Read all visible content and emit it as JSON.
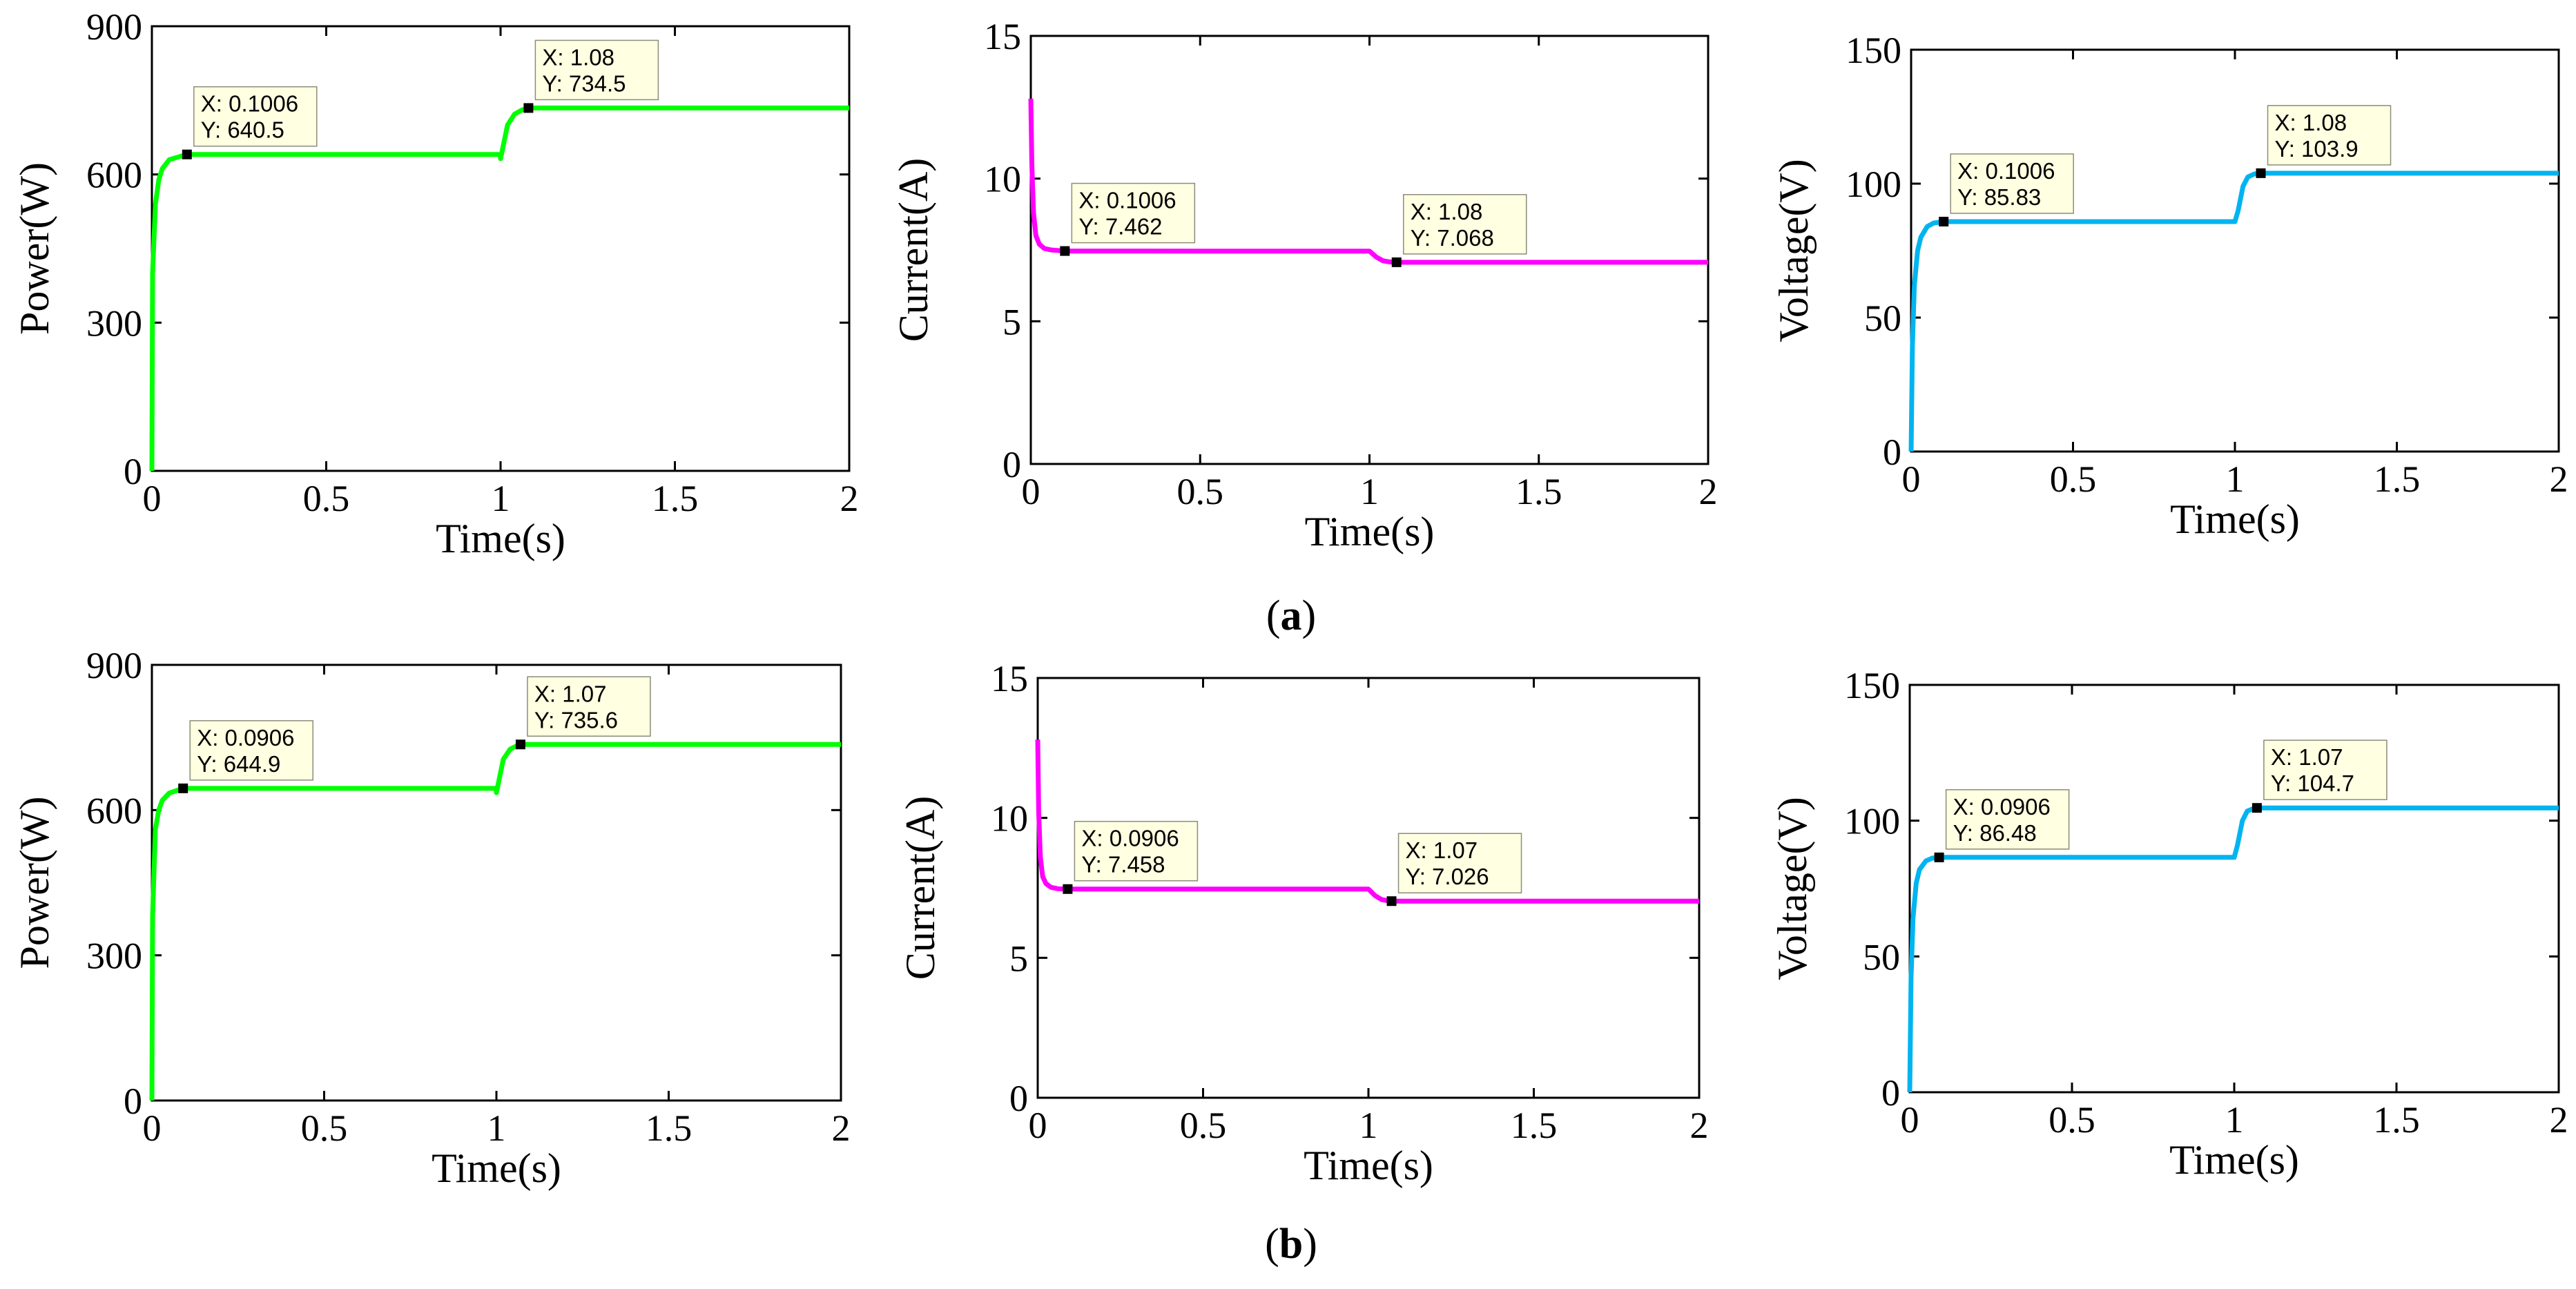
{
  "captions": [
    {
      "open": "(",
      "letter": "a",
      "close": ")"
    },
    {
      "open": "(",
      "letter": "b",
      "close": ")"
    }
  ],
  "colors": {
    "power": "#00ff00",
    "current": "#ff00ff",
    "voltage": "#00b4f0",
    "axis": "#000000",
    "datatip_bg": "#ffffe1"
  },
  "chart_data": [
    {
      "type": "line",
      "row": "a",
      "title": "",
      "xlabel": "Time(s)",
      "ylabel": "Power(W)",
      "xlim": [
        0,
        2
      ],
      "ylim": [
        0,
        900
      ],
      "xticks": [
        "0",
        "0.5",
        "1",
        "1.5",
        "2"
      ],
      "yticks": [
        "0",
        "300",
        "600",
        "900"
      ],
      "series": [
        {
          "name": "Power",
          "color_key": "power",
          "x": [
            0,
            0.002,
            0.01,
            0.02,
            0.03,
            0.05,
            0.1006,
            0.5,
            0.999,
            1.0,
            1.02,
            1.04,
            1.06,
            1.08,
            2.0
          ],
          "y": [
            0,
            400,
            540,
            590,
            612,
            630,
            640.5,
            640.5,
            640.5,
            632,
            700,
            722,
            730,
            734.5,
            734.5
          ]
        }
      ],
      "datatips": [
        {
          "x_label": "X: 0.1006",
          "y_label": "Y: 640.5",
          "x": 0.1006,
          "y": 640.5
        },
        {
          "x_label": "X: 1.08",
          "y_label": "Y: 734.5",
          "x": 1.08,
          "y": 734.5
        }
      ]
    },
    {
      "type": "line",
      "row": "a",
      "title": "",
      "xlabel": "Time(s)",
      "ylabel": "Current(A)",
      "xlim": [
        0,
        2
      ],
      "ylim": [
        0,
        15
      ],
      "xticks": [
        "0",
        "0.5",
        "1",
        "1.5",
        "2"
      ],
      "yticks": [
        "0",
        "5",
        "10",
        "15"
      ],
      "series": [
        {
          "name": "Current",
          "color_key": "current",
          "x": [
            0,
            0.003,
            0.008,
            0.015,
            0.025,
            0.04,
            0.06,
            0.1006,
            0.5,
            1.0,
            1.02,
            1.04,
            1.06,
            1.08,
            2.0
          ],
          "y": [
            12.8,
            10.5,
            8.8,
            8.0,
            7.7,
            7.55,
            7.5,
            7.462,
            7.46,
            7.46,
            7.25,
            7.12,
            7.08,
            7.068,
            7.068
          ]
        }
      ],
      "datatips": [
        {
          "x_label": "X: 0.1006",
          "y_label": "Y: 7.462",
          "x": 0.1006,
          "y": 7.462
        },
        {
          "x_label": "X: 1.08",
          "y_label": "Y: 7.068",
          "x": 1.08,
          "y": 7.068
        }
      ]
    },
    {
      "type": "line",
      "row": "a",
      "title": "",
      "xlabel": "Time(s)",
      "ylabel": "Voltage(V)",
      "xlim": [
        0,
        2
      ],
      "ylim": [
        0,
        150
      ],
      "xticks": [
        "0",
        "0.5",
        "1",
        "1.5",
        "2"
      ],
      "yticks": [
        "0",
        "50",
        "100",
        "150"
      ],
      "series": [
        {
          "name": "Voltage",
          "color_key": "voltage",
          "x": [
            0,
            0.004,
            0.01,
            0.02,
            0.03,
            0.05,
            0.07,
            0.1006,
            0.5,
            1.0,
            1.01,
            1.025,
            1.04,
            1.06,
            1.08,
            2.0
          ],
          "y": [
            0,
            40,
            62,
            75,
            80,
            84,
            85.3,
            85.83,
            85.83,
            85.83,
            90,
            99,
            102.5,
            103.6,
            103.9,
            103.9
          ]
        }
      ],
      "datatips": [
        {
          "x_label": "X: 0.1006",
          "y_label": "Y: 85.83",
          "x": 0.1006,
          "y": 85.83
        },
        {
          "x_label": "X: 1.08",
          "y_label": "Y: 103.9",
          "x": 1.08,
          "y": 103.9
        }
      ]
    },
    {
      "type": "line",
      "row": "b",
      "title": "",
      "xlabel": "Time(s)",
      "ylabel": "Power(W)",
      "xlim": [
        0,
        2
      ],
      "ylim": [
        0,
        900
      ],
      "xticks": [
        "0",
        "0.5",
        "1",
        "1.5",
        "2"
      ],
      "yticks": [
        "0",
        "300",
        "600",
        "900"
      ],
      "series": [
        {
          "name": "Power",
          "color_key": "power",
          "x": [
            0,
            0.002,
            0.01,
            0.02,
            0.03,
            0.05,
            0.0906,
            0.5,
            0.999,
            1.0,
            1.02,
            1.04,
            1.06,
            1.07,
            2.0
          ],
          "y": [
            0,
            380,
            560,
            600,
            620,
            635,
            644.9,
            644.9,
            644.9,
            636,
            705,
            726,
            733,
            735.6,
            735.6
          ]
        }
      ],
      "datatips": [
        {
          "x_label": "X: 0.0906",
          "y_label": "Y: 644.9",
          "x": 0.0906,
          "y": 644.9
        },
        {
          "x_label": "X: 1.07",
          "y_label": "Y: 735.6",
          "x": 1.07,
          "y": 735.6
        }
      ]
    },
    {
      "type": "line",
      "row": "b",
      "title": "",
      "xlabel": "Time(s)",
      "ylabel": "Current(A)",
      "xlim": [
        0,
        2
      ],
      "ylim": [
        0,
        15
      ],
      "xticks": [
        "0",
        "0.5",
        "1",
        "1.5",
        "2"
      ],
      "yticks": [
        "0",
        "5",
        "10",
        "15"
      ],
      "series": [
        {
          "name": "Current",
          "color_key": "current",
          "x": [
            0,
            0.003,
            0.008,
            0.015,
            0.025,
            0.04,
            0.06,
            0.0906,
            0.5,
            1.0,
            1.02,
            1.04,
            1.06,
            1.07,
            2.0
          ],
          "y": [
            12.8,
            10.2,
            8.6,
            7.9,
            7.65,
            7.52,
            7.47,
            7.458,
            7.458,
            7.458,
            7.22,
            7.08,
            7.035,
            7.026,
            7.026
          ]
        }
      ],
      "datatips": [
        {
          "x_label": "X: 0.0906",
          "y_label": "Y: 7.458",
          "x": 0.0906,
          "y": 7.458
        },
        {
          "x_label": "X: 1.07",
          "y_label": "Y: 7.026",
          "x": 1.07,
          "y": 7.026
        }
      ]
    },
    {
      "type": "line",
      "row": "b",
      "title": "",
      "xlabel": "Time(s)",
      "ylabel": "Voltage(V)",
      "xlim": [
        0,
        2
      ],
      "ylim": [
        0,
        150
      ],
      "xticks": [
        "0",
        "0.5",
        "1",
        "1.5",
        "2"
      ],
      "yticks": [
        "0",
        "50",
        "100",
        "150"
      ],
      "series": [
        {
          "name": "Voltage",
          "color_key": "voltage",
          "x": [
            0,
            0.004,
            0.01,
            0.02,
            0.03,
            0.05,
            0.07,
            0.0906,
            0.5,
            1.0,
            1.01,
            1.025,
            1.04,
            1.06,
            1.07,
            2.0
          ],
          "y": [
            0,
            42,
            64,
            77,
            82,
            85.2,
            86.2,
            86.48,
            86.48,
            86.48,
            91,
            100,
            103.5,
            104.5,
            104.7,
            104.7
          ]
        }
      ],
      "datatips": [
        {
          "x_label": "X: 0.0906",
          "y_label": "Y: 86.48",
          "x": 0.0906,
          "y": 86.48
        },
        {
          "x_label": "X: 1.07",
          "y_label": "Y: 104.7",
          "x": 1.07,
          "y": 104.7
        }
      ]
    }
  ]
}
